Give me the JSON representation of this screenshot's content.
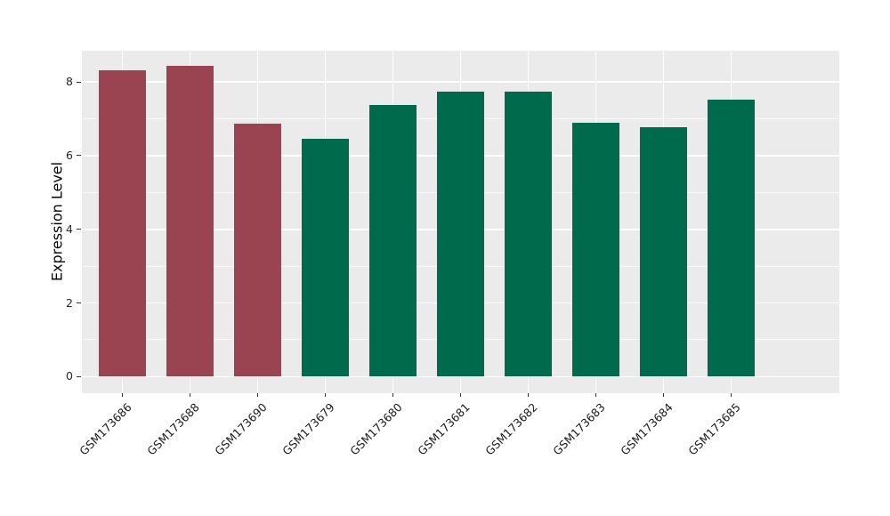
{
  "chart_data": {
    "type": "bar",
    "title": "",
    "xlabel": "",
    "ylabel": "Expression Level",
    "categories": [
      "GSM173686",
      "GSM173688",
      "GSM173690",
      "GSM173679",
      "GSM173680",
      "GSM173681",
      "GSM173682",
      "GSM173683",
      "GSM173684",
      "GSM173685"
    ],
    "values": [
      8.31,
      8.43,
      6.87,
      6.47,
      7.37,
      7.74,
      7.75,
      6.9,
      6.77,
      7.52
    ],
    "bar_groups": [
      "red",
      "red",
      "red",
      "green",
      "green",
      "green",
      "green",
      "green",
      "green",
      "green"
    ],
    "group_colors": {
      "red": "#9A4452",
      "green": "#006B4C"
    },
    "yticks": [
      0,
      2,
      4,
      6,
      8
    ],
    "ytick_labels": [
      "0",
      "2",
      "4",
      "6",
      "8"
    ],
    "minor_yticks": [
      1,
      3,
      5,
      7
    ],
    "ylim": [
      -0.45,
      8.85
    ],
    "bar_width_frac": 0.7,
    "grid": true,
    "legend_position": "none",
    "panel_bg": "#EBEBEB",
    "gridline_color": "#FFFFFF",
    "tick_color": "#333333",
    "axis_text_color": "#262626"
  }
}
